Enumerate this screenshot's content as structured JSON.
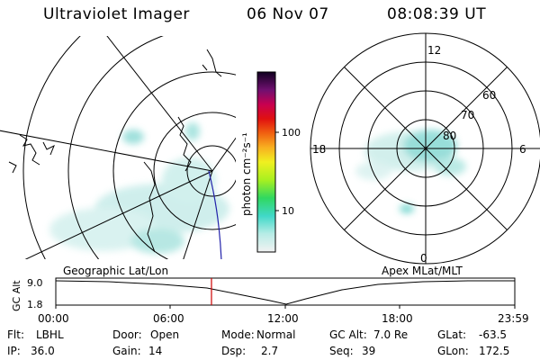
{
  "header": {
    "title": "Ultraviolet Imager",
    "date": "06 Nov 07",
    "time": "08:08:39 UT"
  },
  "colorbar": {
    "unit_label": "photon cm⁻²s⁻¹",
    "ticks": [
      "100",
      "10"
    ]
  },
  "polar_plot": {
    "mlt_labels": {
      "top": "12",
      "right": "6",
      "bottom": "0",
      "left": "18"
    },
    "lat_labels": [
      "60",
      "70",
      "80"
    ]
  },
  "timeline": {
    "ylabel": "GC Alt",
    "yticks": [
      "9.0",
      "1.8"
    ],
    "left_caption": "Geographic Lat/Lon",
    "right_caption": "Apex MLat/MLT",
    "xticks": [
      "00:00",
      "06:00",
      "12:00",
      "18:00",
      "23:59"
    ],
    "marker_time_hours": 8.14
  },
  "footer": {
    "row1": [
      {
        "key": "Flt:",
        "value": "LBHL"
      },
      {
        "key": "Door:",
        "value": "Open"
      },
      {
        "key": "Mode:",
        "value": "Normal"
      },
      {
        "key": "GC Alt:",
        "value": "7.0 Re"
      },
      {
        "key": "GLat:",
        "value": "-63.5"
      }
    ],
    "row2": [
      {
        "key": "IP:",
        "value": "36.0"
      },
      {
        "key": "Gain:",
        "value": "14"
      },
      {
        "key": "Dsp:",
        "value": "2.7"
      },
      {
        "key": "Seq:",
        "value": "39"
      },
      {
        "key": "GLon:",
        "value": "172.5"
      }
    ]
  },
  "colors": {
    "marker": "#cc0000",
    "track": "#2222aa",
    "aurora": "#7fd6d0"
  }
}
